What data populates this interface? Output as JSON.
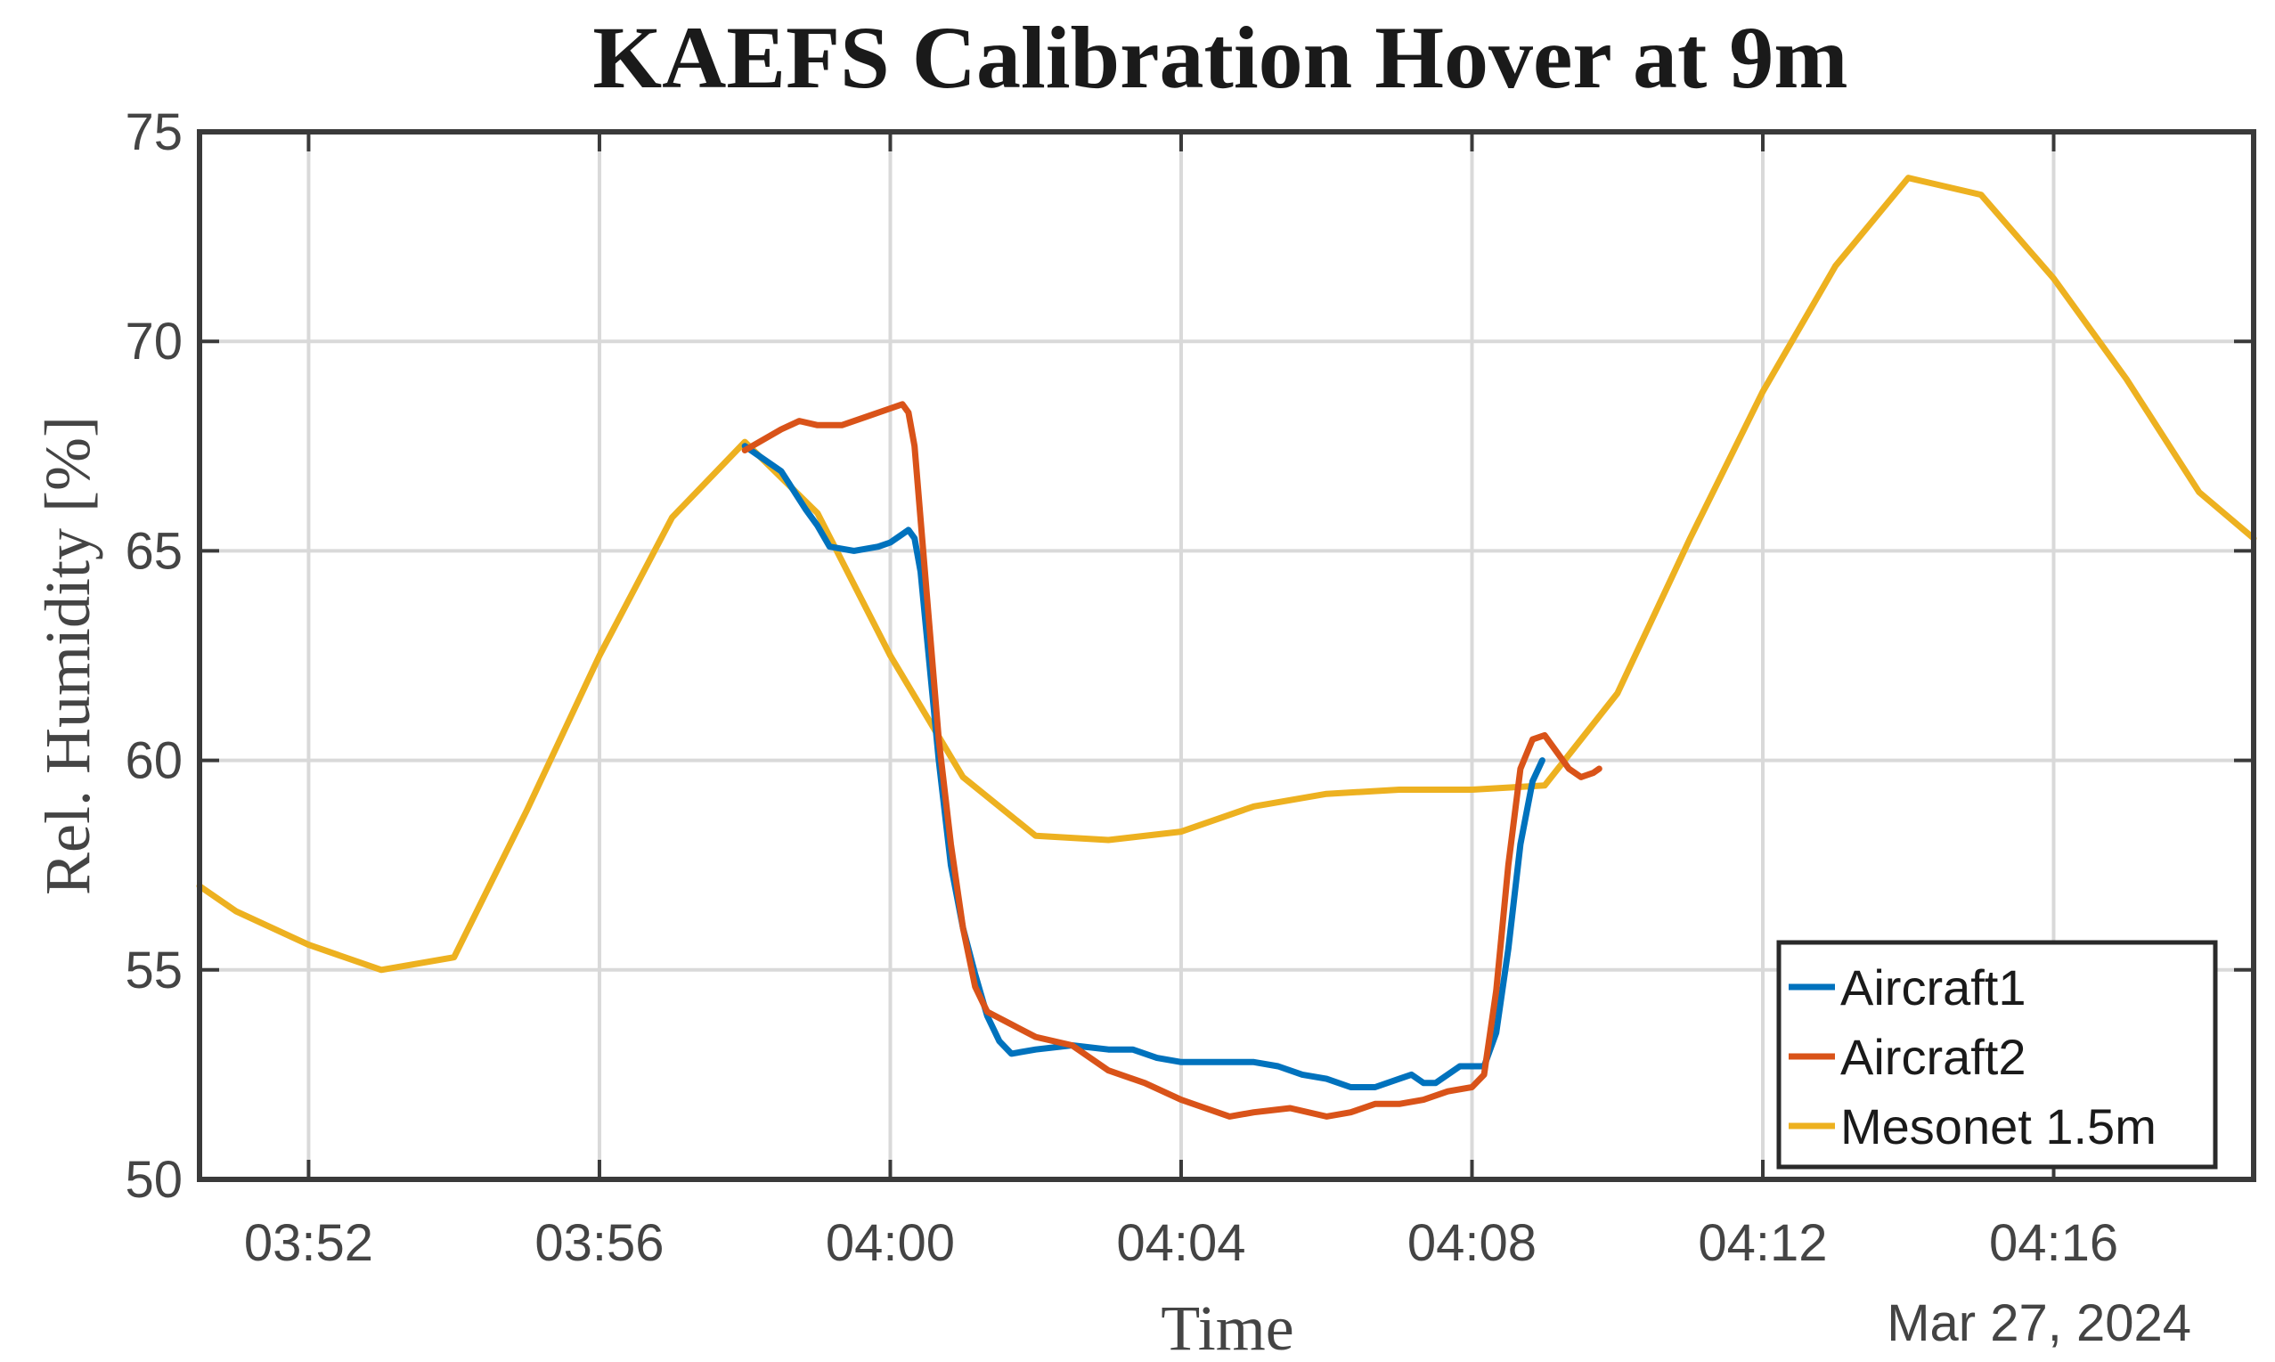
{
  "chart_data": {
    "type": "line",
    "title": "KAEFS Calibration Hover at 9m",
    "xlabel": "Time",
    "ylabel": "Rel. Humidity [%]",
    "date_label": "Mar 27, 2024",
    "xlim": [
      "03:50:30",
      "04:18:45"
    ],
    "ylim": [
      50,
      75
    ],
    "x_ticks": [
      "03:52",
      "03:56",
      "04:00",
      "04:04",
      "04:08",
      "04:12",
      "04:16"
    ],
    "y_ticks": [
      50,
      55,
      60,
      65,
      70,
      75
    ],
    "grid": true,
    "legend_position": "bottom-right",
    "series": [
      {
        "name": "Aircraft1",
        "color": "#0072BD",
        "points": [
          [
            "03:58:00",
            67.5
          ],
          [
            "03:58:30",
            66.9
          ],
          [
            "03:58:50",
            66.0
          ],
          [
            "03:59:00",
            65.6
          ],
          [
            "03:59:10",
            65.1
          ],
          [
            "03:59:30",
            65.0
          ],
          [
            "03:59:50",
            65.1
          ],
          [
            "04:00:00",
            65.2
          ],
          [
            "04:00:10",
            65.4
          ],
          [
            "04:00:15",
            65.5
          ],
          [
            "04:00:20",
            65.3
          ],
          [
            "04:00:25",
            64.5
          ],
          [
            "04:00:30",
            63.0
          ],
          [
            "04:00:40",
            60.0
          ],
          [
            "04:00:50",
            57.5
          ],
          [
            "04:01:00",
            56.0
          ],
          [
            "04:01:10",
            54.9
          ],
          [
            "04:01:20",
            53.9
          ],
          [
            "04:01:30",
            53.3
          ],
          [
            "04:01:40",
            53.0
          ],
          [
            "04:02:00",
            53.1
          ],
          [
            "04:02:30",
            53.2
          ],
          [
            "04:03:00",
            53.1
          ],
          [
            "04:03:20",
            53.1
          ],
          [
            "04:03:40",
            52.9
          ],
          [
            "04:04:00",
            52.8
          ],
          [
            "04:04:30",
            52.8
          ],
          [
            "04:05:00",
            52.8
          ],
          [
            "04:05:20",
            52.7
          ],
          [
            "04:05:40",
            52.5
          ],
          [
            "04:06:00",
            52.4
          ],
          [
            "04:06:20",
            52.2
          ],
          [
            "04:06:40",
            52.2
          ],
          [
            "04:07:00",
            52.4
          ],
          [
            "04:07:10",
            52.5
          ],
          [
            "04:07:20",
            52.3
          ],
          [
            "04:07:30",
            52.3
          ],
          [
            "04:07:50",
            52.7
          ],
          [
            "04:08:00",
            52.7
          ],
          [
            "04:08:10",
            52.7
          ],
          [
            "04:08:20",
            53.5
          ],
          [
            "04:08:30",
            55.5
          ],
          [
            "04:08:40",
            58.0
          ],
          [
            "04:08:50",
            59.5
          ],
          [
            "04:08:58",
            60.0
          ]
        ]
      },
      {
        "name": "Aircraft2",
        "color": "#D95319",
        "points": [
          [
            "03:58:00",
            67.4
          ],
          [
            "03:58:30",
            67.9
          ],
          [
            "03:58:45",
            68.1
          ],
          [
            "03:59:00",
            68.0
          ],
          [
            "03:59:20",
            68.0
          ],
          [
            "03:59:40",
            68.2
          ],
          [
            "04:00:00",
            68.4
          ],
          [
            "04:00:10",
            68.5
          ],
          [
            "04:00:15",
            68.3
          ],
          [
            "04:00:20",
            67.5
          ],
          [
            "04:00:30",
            64.0
          ],
          [
            "04:00:40",
            60.5
          ],
          [
            "04:00:50",
            58.0
          ],
          [
            "04:01:00",
            56.0
          ],
          [
            "04:01:10",
            54.6
          ],
          [
            "04:01:20",
            54.0
          ],
          [
            "04:01:40",
            53.7
          ],
          [
            "04:02:00",
            53.4
          ],
          [
            "04:02:30",
            53.2
          ],
          [
            "04:03:00",
            52.6
          ],
          [
            "04:03:30",
            52.3
          ],
          [
            "04:04:00",
            51.9
          ],
          [
            "04:04:20",
            51.7
          ],
          [
            "04:04:40",
            51.5
          ],
          [
            "04:05:00",
            51.6
          ],
          [
            "04:05:30",
            51.7
          ],
          [
            "04:06:00",
            51.5
          ],
          [
            "04:06:20",
            51.6
          ],
          [
            "04:06:40",
            51.8
          ],
          [
            "04:07:00",
            51.8
          ],
          [
            "04:07:20",
            51.9
          ],
          [
            "04:07:40",
            52.1
          ],
          [
            "04:08:00",
            52.2
          ],
          [
            "04:08:10",
            52.5
          ],
          [
            "04:08:20",
            54.5
          ],
          [
            "04:08:30",
            57.5
          ],
          [
            "04:08:40",
            59.8
          ],
          [
            "04:08:50",
            60.5
          ],
          [
            "04:09:00",
            60.6
          ],
          [
            "04:09:10",
            60.2
          ],
          [
            "04:09:20",
            59.8
          ],
          [
            "04:09:30",
            59.6
          ],
          [
            "04:09:40",
            59.7
          ],
          [
            "04:09:45",
            59.8
          ]
        ]
      },
      {
        "name": "Mesonet 1.5m",
        "color": "#EDB120",
        "points": [
          [
            "03:50:30",
            57.0
          ],
          [
            "03:51:00",
            56.4
          ],
          [
            "03:52:00",
            55.6
          ],
          [
            "03:53:00",
            55.0
          ],
          [
            "03:54:00",
            55.3
          ],
          [
            "03:55:00",
            58.8
          ],
          [
            "03:56:00",
            62.5
          ],
          [
            "03:57:00",
            65.8
          ],
          [
            "03:58:00",
            67.6
          ],
          [
            "03:59:00",
            65.9
          ],
          [
            "04:00:00",
            62.5
          ],
          [
            "04:01:00",
            59.6
          ],
          [
            "04:02:00",
            58.2
          ],
          [
            "04:03:00",
            58.1
          ],
          [
            "04:04:00",
            58.3
          ],
          [
            "04:05:00",
            58.9
          ],
          [
            "04:06:00",
            59.2
          ],
          [
            "04:07:00",
            59.3
          ],
          [
            "04:08:00",
            59.3
          ],
          [
            "04:09:00",
            59.4
          ],
          [
            "04:10:00",
            61.6
          ],
          [
            "04:11:00",
            65.3
          ],
          [
            "04:12:00",
            68.8
          ],
          [
            "04:13:00",
            71.8
          ],
          [
            "04:14:00",
            73.9
          ],
          [
            "04:15:00",
            73.5
          ],
          [
            "04:16:00",
            71.5
          ],
          [
            "04:17:00",
            69.1
          ],
          [
            "04:18:00",
            66.4
          ],
          [
            "04:18:45",
            65.3
          ]
        ]
      }
    ]
  }
}
